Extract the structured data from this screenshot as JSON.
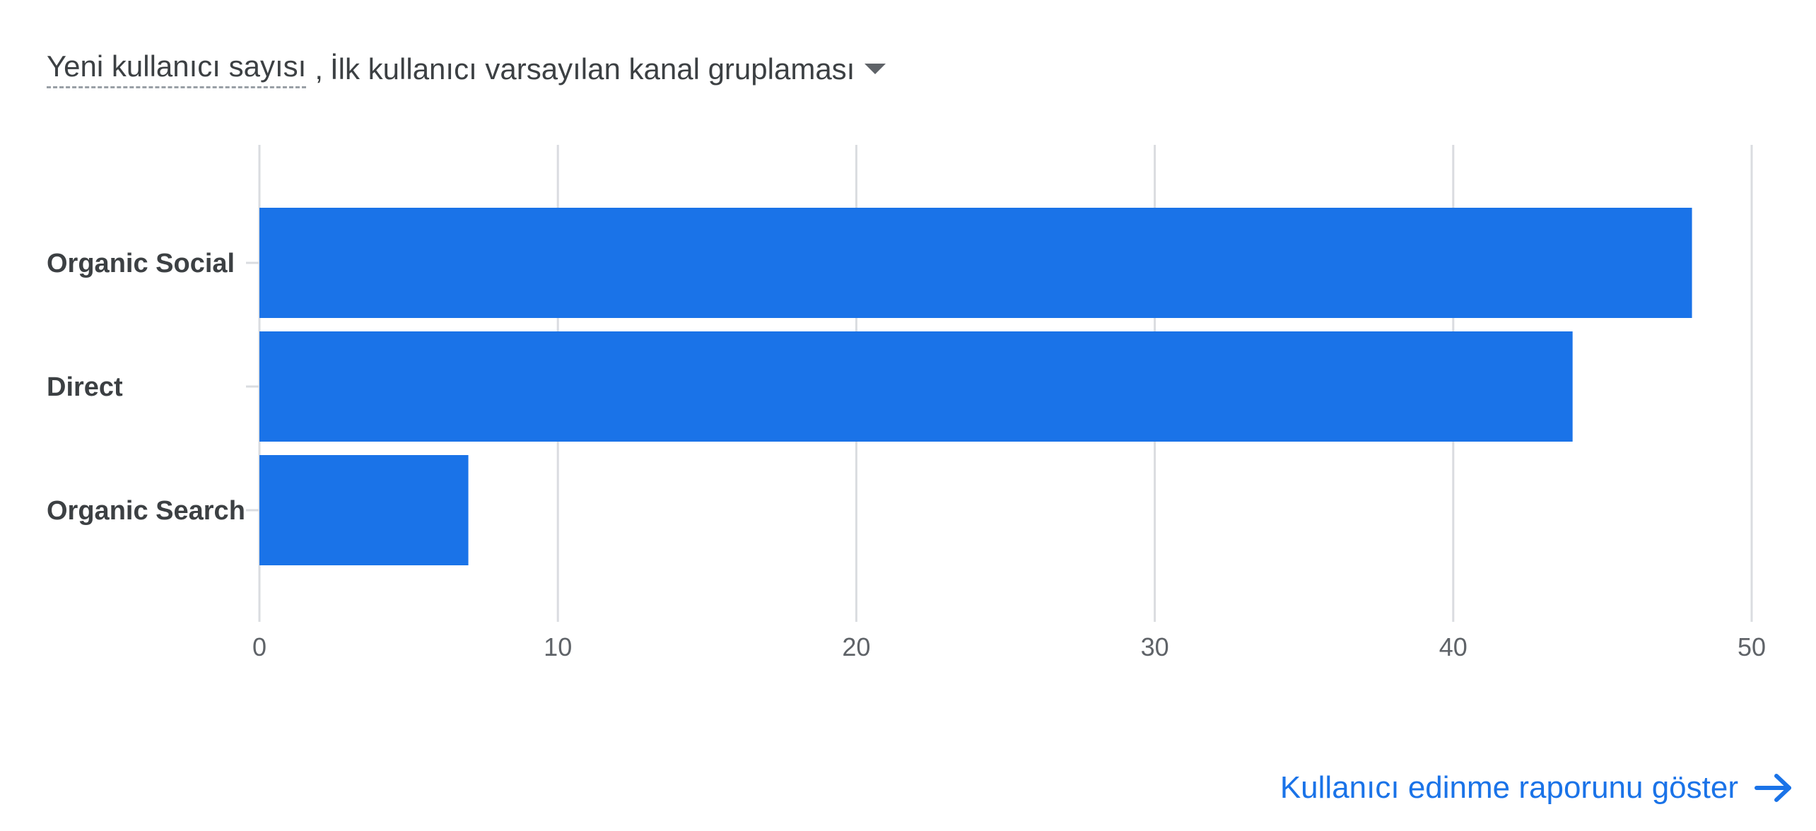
{
  "header": {
    "metric_label": "Yeni kullanıcı sayısı",
    "separator": ",",
    "dimension_label": "İlk kullanıcı varsayılan kanal gruplaması",
    "dropdown_icon": "caret-down-icon"
  },
  "chart_data": {
    "type": "bar",
    "orientation": "horizontal",
    "categories": [
      "Organic Social",
      "Direct",
      "Organic Search"
    ],
    "values": [
      48,
      44,
      7
    ],
    "xlim": [
      0,
      50
    ],
    "xticks": [
      0,
      10,
      20,
      30,
      40,
      50
    ],
    "grid": true,
    "color": "#1a73e8"
  },
  "footer": {
    "link_label": "Kullanıcı edinme raporunu göster",
    "link_icon": "arrow-right-icon",
    "link_color": "#1a73e8"
  }
}
